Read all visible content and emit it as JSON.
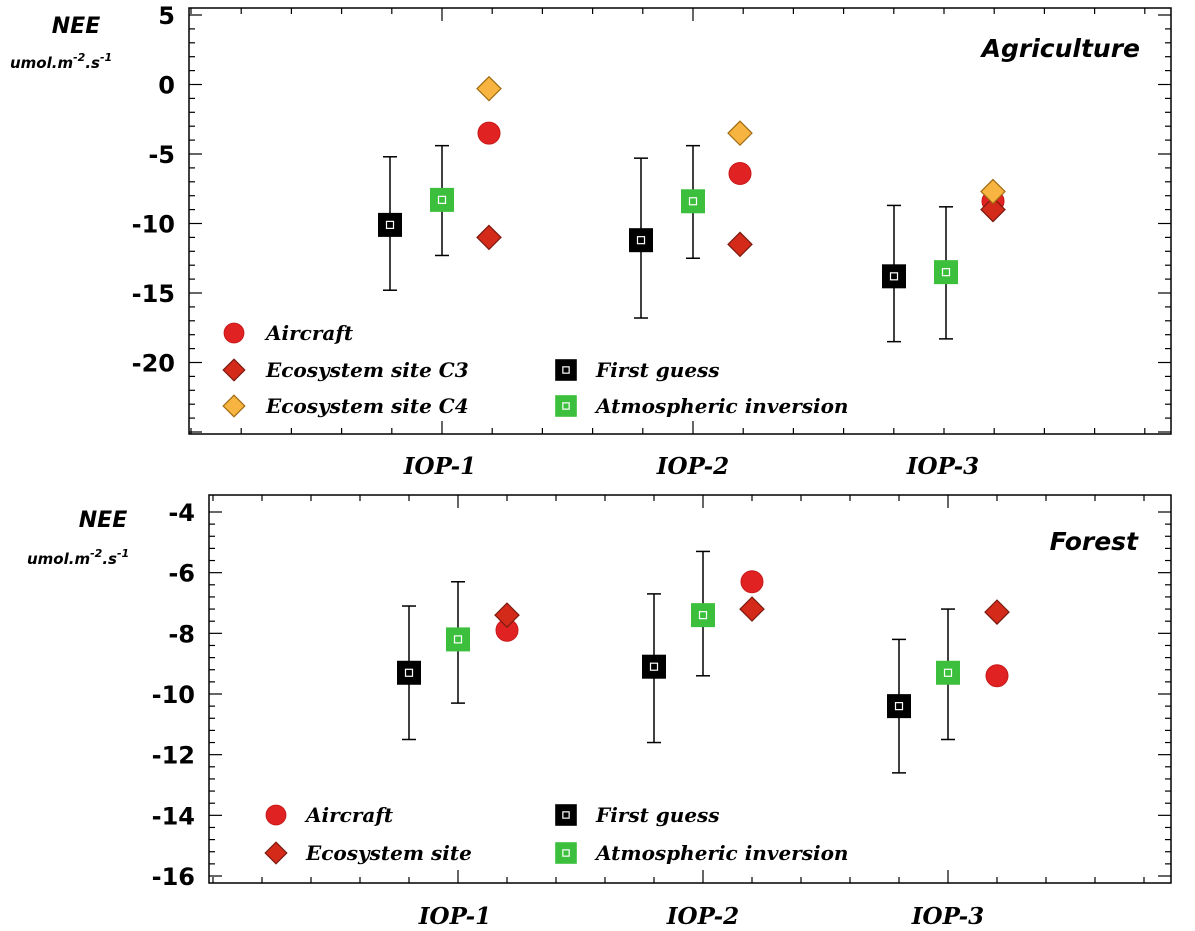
{
  "chart_data": [
    {
      "type": "scatter",
      "title": "Agriculture",
      "ylabel": "NEE",
      "ylabel_unit": [
        "umol.m",
        "-2",
        ".s",
        "-1"
      ],
      "ylim": [
        -25,
        5
      ],
      "yticks": [
        5,
        0,
        -5,
        -10,
        -15,
        -20
      ],
      "categories": [
        "IOP-1",
        "IOP-2",
        "IOP-3"
      ],
      "grid": false,
      "legend": "lower-left",
      "series": [
        {
          "name": "First guess",
          "marker": "square-black",
          "values": [
            -10.1,
            -11.2,
            -13.8
          ],
          "err_low": [
            -14.8,
            -16.8,
            -18.5
          ],
          "err_high": [
            -5.2,
            -5.3,
            -8.7
          ]
        },
        {
          "name": "Atmospheric inversion",
          "marker": "square-green",
          "values": [
            -8.3,
            -8.4,
            -13.5
          ],
          "err_low": [
            -12.3,
            -12.5,
            -18.3
          ],
          "err_high": [
            -4.4,
            -4.4,
            -8.8
          ]
        },
        {
          "name": "Aircraft",
          "marker": "circle-red",
          "values": [
            -3.5,
            -6.4,
            -8.4
          ]
        },
        {
          "name": "Ecosystem site C3",
          "marker": "diamond-red",
          "values": [
            -11.0,
            -11.5,
            -9.0
          ]
        },
        {
          "name": "Ecosystem site C4",
          "marker": "diamond-orange",
          "values": [
            -0.3,
            -3.5,
            -7.7
          ]
        }
      ]
    },
    {
      "type": "scatter",
      "title": "Forest",
      "ylabel": "NEE",
      "ylabel_unit": [
        "umol.m",
        "-2",
        ".s",
        "-1"
      ],
      "ylim": [
        -16,
        -4
      ],
      "yticks": [
        -4,
        -6,
        -8,
        -10,
        -12,
        -14,
        -16
      ],
      "categories": [
        "IOP-1",
        "IOP-2",
        "IOP-3"
      ],
      "grid": false,
      "legend": "lower-left",
      "series": [
        {
          "name": "First guess",
          "marker": "square-black",
          "values": [
            -9.3,
            -9.1,
            -10.4
          ],
          "err_low": [
            -11.5,
            -11.6,
            -12.6
          ],
          "err_high": [
            -7.1,
            -6.7,
            -8.2
          ]
        },
        {
          "name": "Atmospheric inversion",
          "marker": "square-green",
          "values": [
            -8.2,
            -7.4,
            -9.3
          ],
          "err_low": [
            -10.3,
            -9.4,
            -11.5
          ],
          "err_high": [
            -6.3,
            -5.3,
            -7.2
          ]
        },
        {
          "name": "Aircraft",
          "marker": "circle-red",
          "values": [
            -7.9,
            -6.3,
            -9.4
          ]
        },
        {
          "name": "Ecosystem site",
          "marker": "diamond-red",
          "values": [
            -7.4,
            -7.2,
            -7.3
          ]
        }
      ]
    }
  ]
}
